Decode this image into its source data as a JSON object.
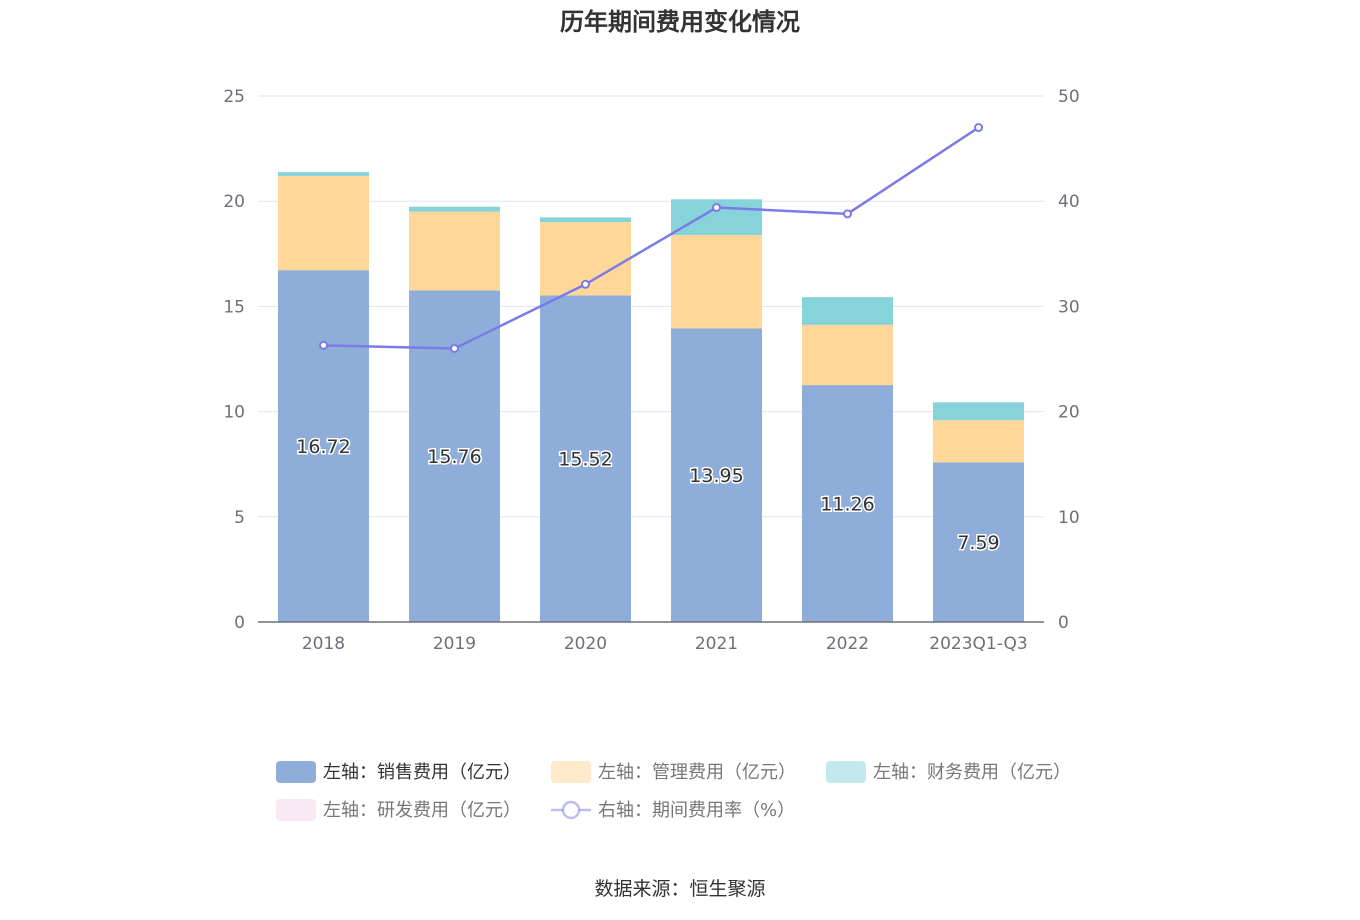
{
  "chart_data": {
    "type": "bar",
    "title": "历年期间费用变化情况",
    "categories": [
      "2018",
      "2019",
      "2020",
      "2021",
      "2022",
      "2023Q1-Q3"
    ],
    "series": [
      {
        "name": "左轴：销售费用（亿元）",
        "type": "bar",
        "axis": "left",
        "color": "#8eadd9",
        "values": [
          16.72,
          15.76,
          15.52,
          13.95,
          11.26,
          7.59
        ]
      },
      {
        "name": "左轴：管理费用（亿元）",
        "type": "bar",
        "axis": "left",
        "color": "#ffd899",
        "values": [
          4.48,
          3.74,
          3.49,
          4.44,
          2.86,
          2.0
        ]
      },
      {
        "name": "左轴：财务费用（亿元）",
        "type": "bar",
        "axis": "left",
        "color": "#86d4d9",
        "values": [
          0.18,
          0.24,
          0.22,
          1.7,
          1.32,
          0.85
        ]
      },
      {
        "name": "左轴：研发费用（亿元）",
        "type": "bar",
        "axis": "left",
        "color": "#f2d4ea",
        "values": [
          0,
          0,
          0,
          0,
          0,
          0
        ]
      },
      {
        "name": "右轴：期间费用率（%）",
        "type": "line",
        "axis": "right",
        "color": "#7b7be8",
        "values": [
          26.3,
          26.0,
          32.1,
          39.4,
          38.8,
          47.0
        ]
      }
    ],
    "y_left": {
      "min": 0,
      "max": 25,
      "ticks": [
        0,
        5,
        10,
        15,
        20,
        25
      ]
    },
    "y_right": {
      "min": 0,
      "max": 50,
      "ticks": [
        0,
        10,
        20,
        30,
        40,
        50
      ]
    },
    "data_labels_series": 0,
    "legend_position": "bottom",
    "grid": true
  },
  "source": "数据来源：恒生聚源"
}
